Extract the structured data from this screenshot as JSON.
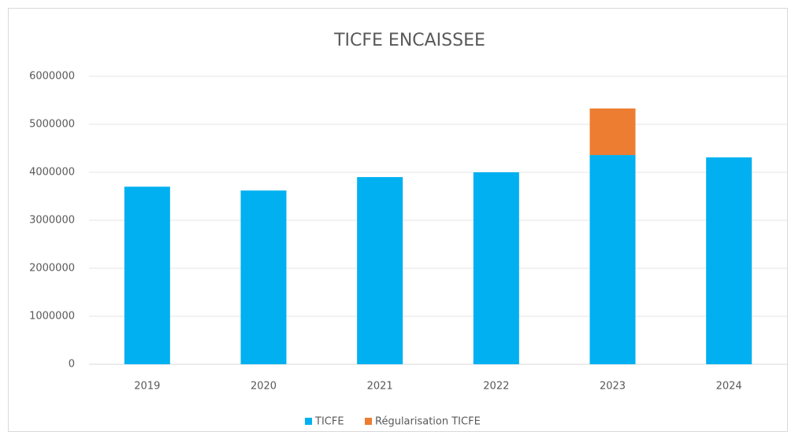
{
  "chart_data": {
    "type": "bar",
    "stacked": true,
    "title": "TICFE ENCAISSEE",
    "categories": [
      "2019",
      "2020",
      "2021",
      "2022",
      "2023",
      "2024"
    ],
    "series": [
      {
        "name": "TICFE",
        "color": "#00b0f0",
        "values": [
          3700000,
          3620000,
          3900000,
          4000000,
          4360000,
          4310000
        ]
      },
      {
        "name": "Régularisation TICFE",
        "color": "#ed7d31",
        "values": [
          null,
          null,
          null,
          null,
          970000,
          null
        ]
      }
    ],
    "ylim": [
      0,
      6000000
    ],
    "yticks": [
      0,
      1000000,
      2000000,
      3000000,
      4000000,
      5000000,
      6000000
    ],
    "grid": true,
    "legend": "bottom"
  }
}
